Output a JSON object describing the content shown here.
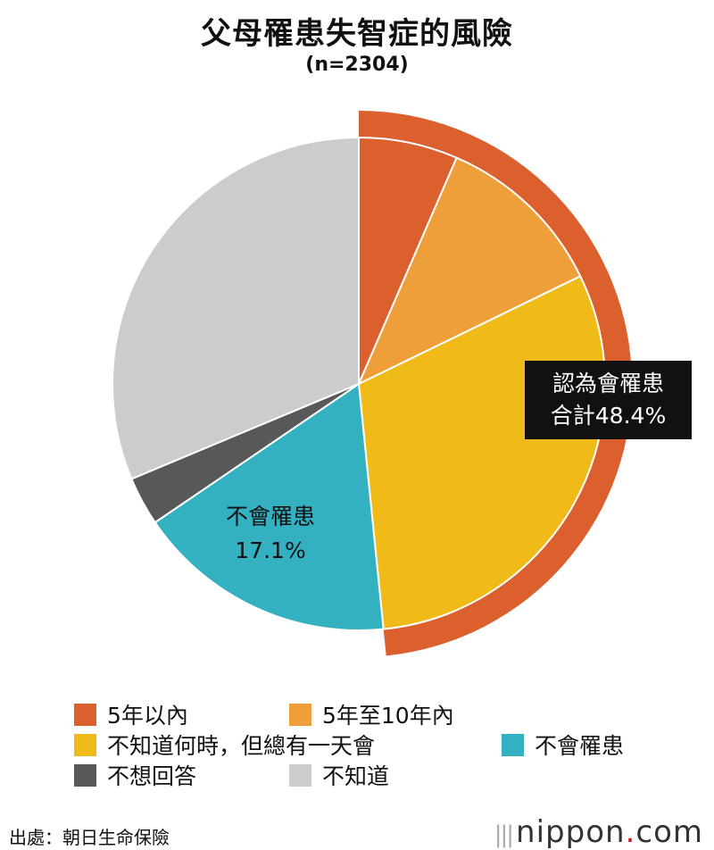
{
  "header": {
    "title": "父母罹患失智症的風險",
    "subtitle": "(n=2304)"
  },
  "chart_data": {
    "type": "pie",
    "title": "父母罹患失智症的風險",
    "subtitle": "(n=2304)",
    "slices": [
      {
        "label": "5年以內",
        "value": 6.5,
        "color": "#dc5f2e"
      },
      {
        "label": "5年至10年內",
        "value": 11.3,
        "color": "#ef9f3a"
      },
      {
        "label": "不知道何時，但總有一天會",
        "value": 30.6,
        "color": "#f0bb18"
      },
      {
        "label": "不會罹患",
        "value": 17.1,
        "color": "#33b1c1"
      },
      {
        "label": "不想回答",
        "value": 3.2,
        "color": "#585858"
      },
      {
        "label": "不知道",
        "value": 31.3,
        "color": "#cccccc"
      }
    ],
    "outer_ring": {
      "covers": [
        "5年以內",
        "5年至10年內",
        "不知道何時，但總有一天會"
      ],
      "value": 48.4,
      "color": "#dc5f2e"
    },
    "annotations": {
      "group_line1": "認為會罹患",
      "group_line2": "合計48.4%",
      "inner_line1": "不會罹患",
      "inner_line2": "17.1%"
    },
    "legend_placement": "bottom"
  },
  "legend": [
    {
      "label": "5年以內",
      "color": "#dc5f2e"
    },
    {
      "label": "5年至10年內",
      "color": "#ef9f3a"
    },
    {
      "label": "不知道何時，但總有一天會",
      "color": "#f0bb18"
    },
    {
      "label": "不會罹患",
      "color": "#33b1c1"
    },
    {
      "label": "不想回答",
      "color": "#585858"
    },
    {
      "label": "不知道",
      "color": "#cccccc"
    }
  ],
  "footer": {
    "source": "出處：朝日生命保險",
    "brand_name": "nippon",
    "brand_dot": ".",
    "brand_tld": "com"
  }
}
